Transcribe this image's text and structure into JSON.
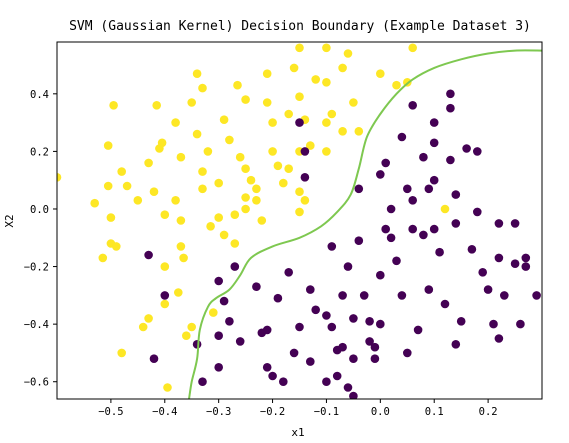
{
  "chart_data": {
    "type": "scatter",
    "title": "SVM (Gaussian Kernel) Decision Boundary (Example Dataset 3)",
    "xlabel": "x1",
    "ylabel": "X2",
    "xlim": [
      -0.6,
      0.3
    ],
    "ylim": [
      -0.66,
      0.58
    ],
    "x_ticks": [
      -0.5,
      -0.4,
      -0.3,
      -0.2,
      -0.1,
      0.0,
      0.1,
      0.2
    ],
    "x_tick_labels": [
      "−0.5",
      "−0.4",
      "−0.3",
      "−0.2",
      "−0.1",
      "0.0",
      "0.1",
      "0.2"
    ],
    "y_ticks": [
      0.4,
      0.2,
      0.0,
      -0.2,
      -0.4,
      -0.6
    ],
    "y_tick_labels": [
      "0.4",
      "0.2",
      "0.0",
      "−0.2",
      "−0.4",
      "−0.6"
    ],
    "grid": false,
    "colors": {
      "class0": "#440154",
      "class1": "#fde725",
      "boundary": "#7ec850"
    },
    "series": [
      {
        "points": [
          [
            -0.6,
            0.11
          ],
          [
            -0.53,
            0.02
          ],
          [
            -0.495,
            0.36
          ],
          [
            -0.505,
            0.22
          ],
          [
            -0.505,
            0.08
          ],
          [
            -0.48,
            0.13
          ],
          [
            -0.5,
            -0.03
          ],
          [
            -0.47,
            0.08
          ],
          [
            -0.515,
            -0.17
          ],
          [
            -0.5,
            -0.12
          ],
          [
            -0.49,
            -0.13
          ],
          [
            -0.45,
            0.03
          ],
          [
            -0.48,
            -0.5
          ],
          [
            -0.44,
            -0.41
          ],
          [
            -0.43,
            0.16
          ],
          [
            -0.415,
            0.36
          ],
          [
            -0.41,
            0.21
          ],
          [
            -0.405,
            0.23
          ],
          [
            -0.42,
            0.06
          ],
          [
            -0.43,
            -0.38
          ],
          [
            -0.4,
            -0.02
          ],
          [
            -0.4,
            -0.33
          ],
          [
            -0.4,
            -0.2
          ],
          [
            -0.395,
            -0.62
          ],
          [
            -0.38,
            0.3
          ],
          [
            -0.37,
            0.18
          ],
          [
            -0.38,
            0.03
          ],
          [
            -0.37,
            -0.04
          ],
          [
            -0.37,
            -0.13
          ],
          [
            -0.375,
            -0.29
          ],
          [
            -0.365,
            -0.17
          ],
          [
            -0.36,
            -0.44
          ],
          [
            -0.35,
            -0.41
          ],
          [
            -0.35,
            0.37
          ],
          [
            -0.34,
            0.47
          ],
          [
            -0.33,
            0.42
          ],
          [
            -0.34,
            0.26
          ],
          [
            -0.33,
            0.13
          ],
          [
            -0.33,
            0.07
          ],
          [
            -0.32,
            0.2
          ],
          [
            -0.315,
            -0.06
          ],
          [
            -0.31,
            -0.36
          ],
          [
            -0.3,
            -0.03
          ],
          [
            -0.29,
            0.31
          ],
          [
            -0.3,
            0.09
          ],
          [
            -0.29,
            -0.09
          ],
          [
            -0.28,
            0.24
          ],
          [
            -0.27,
            -0.12
          ],
          [
            -0.27,
            -0.02
          ],
          [
            -0.265,
            0.43
          ],
          [
            -0.26,
            0.18
          ],
          [
            -0.25,
            0.38
          ],
          [
            -0.25,
            0.14
          ],
          [
            -0.25,
            0.0
          ],
          [
            -0.25,
            0.04
          ],
          [
            -0.24,
            0.1
          ],
          [
            -0.23,
            0.07
          ],
          [
            -0.23,
            0.03
          ],
          [
            -0.22,
            -0.04
          ],
          [
            -0.21,
            0.47
          ],
          [
            -0.21,
            0.37
          ],
          [
            -0.2,
            0.3
          ],
          [
            -0.2,
            0.2
          ],
          [
            -0.19,
            0.15
          ],
          [
            -0.18,
            0.09
          ],
          [
            -0.17,
            0.33
          ],
          [
            -0.16,
            0.49
          ],
          [
            -0.15,
            0.56
          ],
          [
            -0.15,
            0.39
          ],
          [
            -0.15,
            0.2
          ],
          [
            -0.15,
            0.06
          ],
          [
            -0.14,
            0.31
          ],
          [
            -0.14,
            0.03
          ],
          [
            -0.13,
            0.22
          ],
          [
            -0.12,
            0.45
          ],
          [
            -0.1,
            0.56
          ],
          [
            -0.1,
            0.44
          ],
          [
            -0.1,
            0.3
          ],
          [
            -0.1,
            0.2
          ],
          [
            -0.09,
            0.33
          ],
          [
            -0.07,
            0.49
          ],
          [
            -0.07,
            0.27
          ],
          [
            -0.06,
            0.54
          ],
          [
            -0.05,
            0.37
          ],
          [
            -0.04,
            0.27
          ],
          [
            0.0,
            0.47
          ],
          [
            0.03,
            0.43
          ],
          [
            0.05,
            0.44
          ],
          [
            0.06,
            0.56
          ],
          [
            -0.17,
            0.14
          ],
          [
            -0.15,
            -0.01
          ],
          [
            0.12,
            0.0
          ]
        ]
      },
      {
        "points": [
          [
            -0.43,
            -0.16
          ],
          [
            -0.42,
            -0.52
          ],
          [
            -0.4,
            -0.3
          ],
          [
            -0.34,
            -0.47
          ],
          [
            -0.33,
            -0.6
          ],
          [
            -0.3,
            -0.25
          ],
          [
            -0.3,
            -0.44
          ],
          [
            -0.3,
            -0.55
          ],
          [
            -0.29,
            -0.32
          ],
          [
            -0.28,
            -0.39
          ],
          [
            -0.27,
            -0.2
          ],
          [
            -0.26,
            -0.46
          ],
          [
            -0.23,
            -0.27
          ],
          [
            -0.22,
            -0.43
          ],
          [
            -0.21,
            -0.42
          ],
          [
            -0.21,
            -0.55
          ],
          [
            -0.2,
            -0.58
          ],
          [
            -0.19,
            -0.31
          ],
          [
            -0.18,
            -0.6
          ],
          [
            -0.17,
            -0.22
          ],
          [
            -0.16,
            -0.5
          ],
          [
            -0.15,
            -0.41
          ],
          [
            -0.14,
            0.11
          ],
          [
            -0.13,
            -0.28
          ],
          [
            -0.13,
            -0.53
          ],
          [
            -0.12,
            -0.35
          ],
          [
            -0.1,
            -0.37
          ],
          [
            -0.1,
            -0.6
          ],
          [
            -0.09,
            -0.13
          ],
          [
            -0.09,
            -0.41
          ],
          [
            -0.08,
            -0.49
          ],
          [
            -0.08,
            -0.58
          ],
          [
            -0.07,
            -0.3
          ],
          [
            -0.07,
            -0.48
          ],
          [
            -0.06,
            -0.2
          ],
          [
            -0.05,
            -0.38
          ],
          [
            -0.05,
            -0.52
          ],
          [
            -0.05,
            -0.65
          ],
          [
            -0.04,
            0.07
          ],
          [
            -0.04,
            -0.11
          ],
          [
            -0.03,
            -0.3
          ],
          [
            -0.02,
            -0.46
          ],
          [
            -0.01,
            -0.52
          ],
          [
            -0.01,
            -0.48
          ],
          [
            0.0,
            0.12
          ],
          [
            0.0,
            -0.23
          ],
          [
            0.0,
            -0.4
          ],
          [
            0.01,
            0.16
          ],
          [
            0.01,
            -0.07
          ],
          [
            0.02,
            0.0
          ],
          [
            0.02,
            -0.1
          ],
          [
            0.03,
            -0.18
          ],
          [
            0.04,
            0.25
          ],
          [
            0.04,
            -0.3
          ],
          [
            0.05,
            0.07
          ],
          [
            0.05,
            -0.5
          ],
          [
            0.06,
            0.36
          ],
          [
            0.06,
            0.03
          ],
          [
            0.06,
            -0.07
          ],
          [
            0.07,
            -0.42
          ],
          [
            0.08,
            0.18
          ],
          [
            0.08,
            -0.09
          ],
          [
            0.09,
            0.07
          ],
          [
            0.09,
            -0.28
          ],
          [
            0.1,
            0.3
          ],
          [
            0.1,
            0.1
          ],
          [
            0.1,
            -0.07
          ],
          [
            0.11,
            -0.15
          ],
          [
            0.12,
            -0.33
          ],
          [
            0.13,
            0.17
          ],
          [
            0.13,
            0.4
          ],
          [
            0.13,
            0.35
          ],
          [
            0.14,
            0.05
          ],
          [
            0.14,
            -0.05
          ],
          [
            0.14,
            -0.47
          ],
          [
            0.15,
            -0.39
          ],
          [
            0.16,
            0.21
          ],
          [
            0.17,
            -0.14
          ],
          [
            0.18,
            0.2
          ],
          [
            0.19,
            -0.22
          ],
          [
            0.2,
            -0.28
          ],
          [
            0.21,
            -0.4
          ],
          [
            0.22,
            -0.05
          ],
          [
            0.22,
            -0.17
          ],
          [
            0.22,
            -0.45
          ],
          [
            0.23,
            -0.3
          ],
          [
            0.25,
            -0.19
          ],
          [
            0.25,
            -0.05
          ],
          [
            0.26,
            -0.4
          ],
          [
            0.27,
            -0.2
          ],
          [
            0.27,
            -0.17
          ],
          [
            0.29,
            -0.3
          ],
          [
            -0.15,
            0.3
          ],
          [
            -0.14,
            0.2
          ],
          [
            -0.06,
            -0.62
          ],
          [
            0.18,
            -0.01
          ],
          [
            0.1,
            0.23
          ],
          [
            -0.02,
            -0.39
          ]
        ]
      }
    ],
    "boundary": [
      [
        -0.355,
        -0.66
      ],
      [
        -0.35,
        -0.6
      ],
      [
        -0.34,
        -0.52
      ],
      [
        -0.335,
        -0.42
      ],
      [
        -0.32,
        -0.34
      ],
      [
        -0.305,
        -0.31
      ],
      [
        -0.28,
        -0.28
      ],
      [
        -0.26,
        -0.23
      ],
      [
        -0.24,
        -0.17
      ],
      [
        -0.2,
        -0.13
      ],
      [
        -0.15,
        -0.1
      ],
      [
        -0.11,
        -0.06
      ],
      [
        -0.08,
        -0.01
      ],
      [
        -0.055,
        0.05
      ],
      [
        -0.04,
        0.14
      ],
      [
        -0.025,
        0.25
      ],
      [
        0.0,
        0.33
      ],
      [
        0.03,
        0.4
      ],
      [
        0.06,
        0.45
      ],
      [
        0.1,
        0.49
      ],
      [
        0.15,
        0.52
      ],
      [
        0.2,
        0.54
      ],
      [
        0.25,
        0.55
      ],
      [
        0.3,
        0.55
      ]
    ]
  }
}
